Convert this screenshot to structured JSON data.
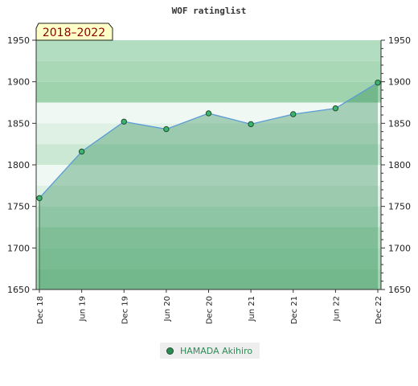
{
  "chart_data": {
    "type": "area",
    "title": "WOF ratinglist",
    "period_badge": "2018–2022",
    "categories": [
      "Dec 18",
      "Jun 19",
      "Dec 19",
      "Jun 20",
      "Dec 20",
      "Jun 21",
      "Dec 21",
      "Jun 22",
      "Dec 22"
    ],
    "series": [
      {
        "name": "HAMADA Akihiro",
        "values": [
          1760,
          1816,
          1852,
          1843,
          1862,
          1849,
          1861,
          1868,
          1899
        ]
      }
    ],
    "ylim": [
      1650,
      1950
    ],
    "yticks": [
      1650,
      1700,
      1750,
      1800,
      1850,
      1900,
      1950
    ],
    "y_axis_both_sides": true,
    "grid": false,
    "legend_position": "bottom-center",
    "colors": {
      "line": "#5b9bd5",
      "area_fill": "#2e8b57",
      "marker_fill": "#3cb371",
      "marker_stroke": "#1f4f2a",
      "band_dark": "#79c493",
      "band_light": "#eaf6ee",
      "badge_bg": "#ffffc8",
      "badge_text": "#8b0000",
      "legend_text": "#2e8b57"
    }
  }
}
